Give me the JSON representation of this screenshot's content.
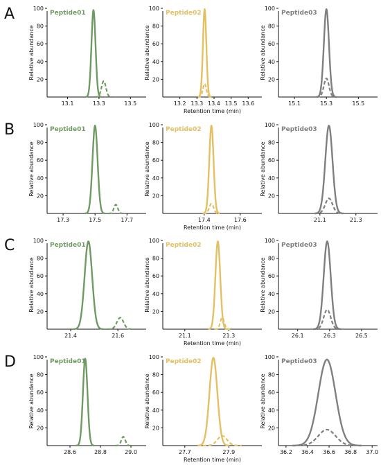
{
  "colors": {
    "Peptide01": "#6f9a63",
    "Peptide02": "#e3c064",
    "Peptide03": "#7f7f7f"
  },
  "axis_labels": {
    "y": "Relative abundance",
    "x": "Retention time (min)"
  },
  "chart_data": [
    {
      "type": "line",
      "row": "A",
      "title": "Peptide01",
      "ylabel": "Relative abundance",
      "xlim": [
        12.97,
        13.6
      ],
      "ylim": [
        0,
        100
      ],
      "xticks": [
        "13.1",
        "13.3",
        "13.5"
      ],
      "yticks": [
        "20",
        "40",
        "60",
        "80",
        "100"
      ],
      "series": [
        {
          "style": "solid",
          "center": 13.265,
          "height": 98,
          "width": 0.013
        },
        {
          "style": "dashed",
          "center": 13.33,
          "height": 18,
          "width": 0.014
        }
      ]
    },
    {
      "type": "line",
      "row": "A",
      "title": "Peptide02",
      "ylabel": "Relative abundance",
      "xlabel": "Retention time (min)",
      "xlim": [
        13.1,
        13.68
      ],
      "ylim": [
        0,
        100
      ],
      "xticks": [
        "13.2",
        "13.3",
        "13.4",
        "13.5",
        "13.6"
      ],
      "yticks": [
        "20",
        "40",
        "60",
        "80",
        "100"
      ],
      "series": [
        {
          "style": "solid",
          "center": 13.345,
          "height": 99,
          "width": 0.01
        },
        {
          "style": "dashed",
          "center": 13.345,
          "height": 15,
          "width": 0.01
        }
      ]
    },
    {
      "type": "line",
      "row": "A",
      "title": "Peptide03",
      "ylabel": "Relative abundance",
      "xlim": [
        15.0,
        15.62
      ],
      "ylim": [
        0,
        100
      ],
      "xticks": [
        "15.1",
        "15.3",
        "15.5"
      ],
      "yticks": [
        "20",
        "40",
        "60",
        "80",
        "100"
      ],
      "series": [
        {
          "style": "solid",
          "center": 15.3,
          "height": 99,
          "width": 0.016
        },
        {
          "style": "dashed",
          "center": 15.3,
          "height": 21,
          "width": 0.016
        }
      ]
    },
    {
      "type": "line",
      "row": "B",
      "title": "Peptide01",
      "ylabel": "Relative abundance",
      "xlim": [
        17.2,
        17.82
      ],
      "ylim": [
        0,
        100
      ],
      "xticks": [
        "17.3",
        "17.5",
        "17.7"
      ],
      "yticks": [
        "20",
        "40",
        "60",
        "80",
        "100"
      ],
      "series": [
        {
          "style": "solid",
          "center": 17.5,
          "height": 99,
          "width": 0.016
        },
        {
          "style": "dashed",
          "center": 17.63,
          "height": 10,
          "width": 0.012
        }
      ]
    },
    {
      "type": "line",
      "row": "B",
      "title": "Peptide02",
      "ylabel": "Relative abundance",
      "xlabel": "Retention time (min)",
      "xlim": [
        17.17,
        17.72
      ],
      "ylim": [
        0,
        100
      ],
      "xticks": [
        "17.4",
        "17.6"
      ],
      "yticks": [
        "20",
        "40",
        "60",
        "80",
        "100"
      ],
      "series": [
        {
          "style": "solid",
          "center": 17.44,
          "height": 99,
          "width": 0.012
        },
        {
          "style": "dashed",
          "center": 17.44,
          "height": 11,
          "width": 0.012
        }
      ]
    },
    {
      "type": "line",
      "row": "B",
      "title": "Peptide03",
      "ylabel": "Relative abundance",
      "xlim": [
        20.87,
        21.42
      ],
      "ylim": [
        0,
        100
      ],
      "xticks": [
        "21.1",
        "21.3"
      ],
      "yticks": [
        "20",
        "40",
        "60",
        "80",
        "100"
      ],
      "series": [
        {
          "style": "solid",
          "center": 21.15,
          "height": 99,
          "width": 0.02
        },
        {
          "style": "dashed",
          "center": 21.15,
          "height": 17,
          "width": 0.02
        }
      ]
    },
    {
      "type": "line",
      "row": "C",
      "title": "Peptide01",
      "ylabel": "Relative abundance",
      "xlim": [
        21.3,
        21.72
      ],
      "ylim": [
        0,
        100
      ],
      "xticks": [
        "21.4",
        "21.6"
      ],
      "yticks": [
        "20",
        "40",
        "60",
        "80",
        "100"
      ],
      "series": [
        {
          "style": "solid",
          "center": 21.475,
          "height": 99,
          "width": 0.016
        },
        {
          "style": "dashed",
          "center": 21.61,
          "height": 13,
          "width": 0.014
        }
      ]
    },
    {
      "type": "line",
      "row": "C",
      "title": "Peptide02",
      "ylabel": "Relative abundance",
      "xlabel": "Retention time (min)",
      "xlim": [
        21.0,
        21.45
      ],
      "ylim": [
        0,
        100
      ],
      "xticks": [
        "21.1",
        "21.3"
      ],
      "yticks": [
        "20",
        "40",
        "60",
        "80",
        "100"
      ],
      "series": [
        {
          "style": "solid",
          "center": 21.25,
          "height": 99,
          "width": 0.011
        },
        {
          "style": "dashed",
          "center": 21.27,
          "height": 13,
          "width": 0.009
        }
      ]
    },
    {
      "type": "line",
      "row": "C",
      "title": "Peptide03",
      "ylabel": "Relative abundance",
      "xlim": [
        25.98,
        26.6
      ],
      "ylim": [
        0,
        100
      ],
      "xticks": [
        "26.1",
        "26.3",
        "26.5"
      ],
      "yticks": [
        "20",
        "40",
        "60",
        "80",
        "100"
      ],
      "series": [
        {
          "style": "solid",
          "center": 26.285,
          "height": 99,
          "width": 0.022
        },
        {
          "style": "dashed",
          "center": 26.285,
          "height": 22,
          "width": 0.022
        }
      ]
    },
    {
      "type": "line",
      "row": "D",
      "title": "Peptide01",
      "ylabel": "Relative abundance",
      "xlim": [
        28.45,
        29.1
      ],
      "ylim": [
        0,
        100
      ],
      "xticks": [
        "28.6",
        "28.8",
        "29.0"
      ],
      "yticks": [
        "20",
        "40",
        "60",
        "80",
        "100"
      ],
      "series": [
        {
          "style": "solid",
          "center": 28.7,
          "height": 98,
          "width": 0.015
        },
        {
          "style": "dashed",
          "center": 28.95,
          "height": 10,
          "width": 0.013
        }
      ]
    },
    {
      "type": "line",
      "row": "D",
      "title": "Peptide02",
      "ylabel": "Relative abundance",
      "xlabel": "Retention time (min)",
      "xlim": [
        27.6,
        28.05
      ],
      "ylim": [
        0,
        100
      ],
      "xticks": [
        "27.7",
        "27.9"
      ],
      "yticks": [
        "20",
        "40",
        "60",
        "80",
        "100"
      ],
      "series": [
        {
          "style": "solid",
          "center": 27.83,
          "height": 99,
          "width": 0.018
        },
        {
          "style": "dashed",
          "center": 27.87,
          "height": 11,
          "width": 0.022
        }
      ]
    },
    {
      "type": "line",
      "row": "D",
      "title": "Peptide03",
      "ylabel": "Relative abundance",
      "xlim": [
        36.13,
        37.05
      ],
      "ylim": [
        0,
        100
      ],
      "xticks": [
        "36.2",
        "36.4",
        "36.6",
        "36.8",
        "37.0"
      ],
      "yticks": [
        "20",
        "40",
        "60",
        "80",
        "100"
      ],
      "series": [
        {
          "style": "solid",
          "center": 36.58,
          "height": 97,
          "width": 0.08
        },
        {
          "style": "dashed",
          "center": 36.58,
          "height": 18,
          "width": 0.08
        }
      ]
    }
  ]
}
